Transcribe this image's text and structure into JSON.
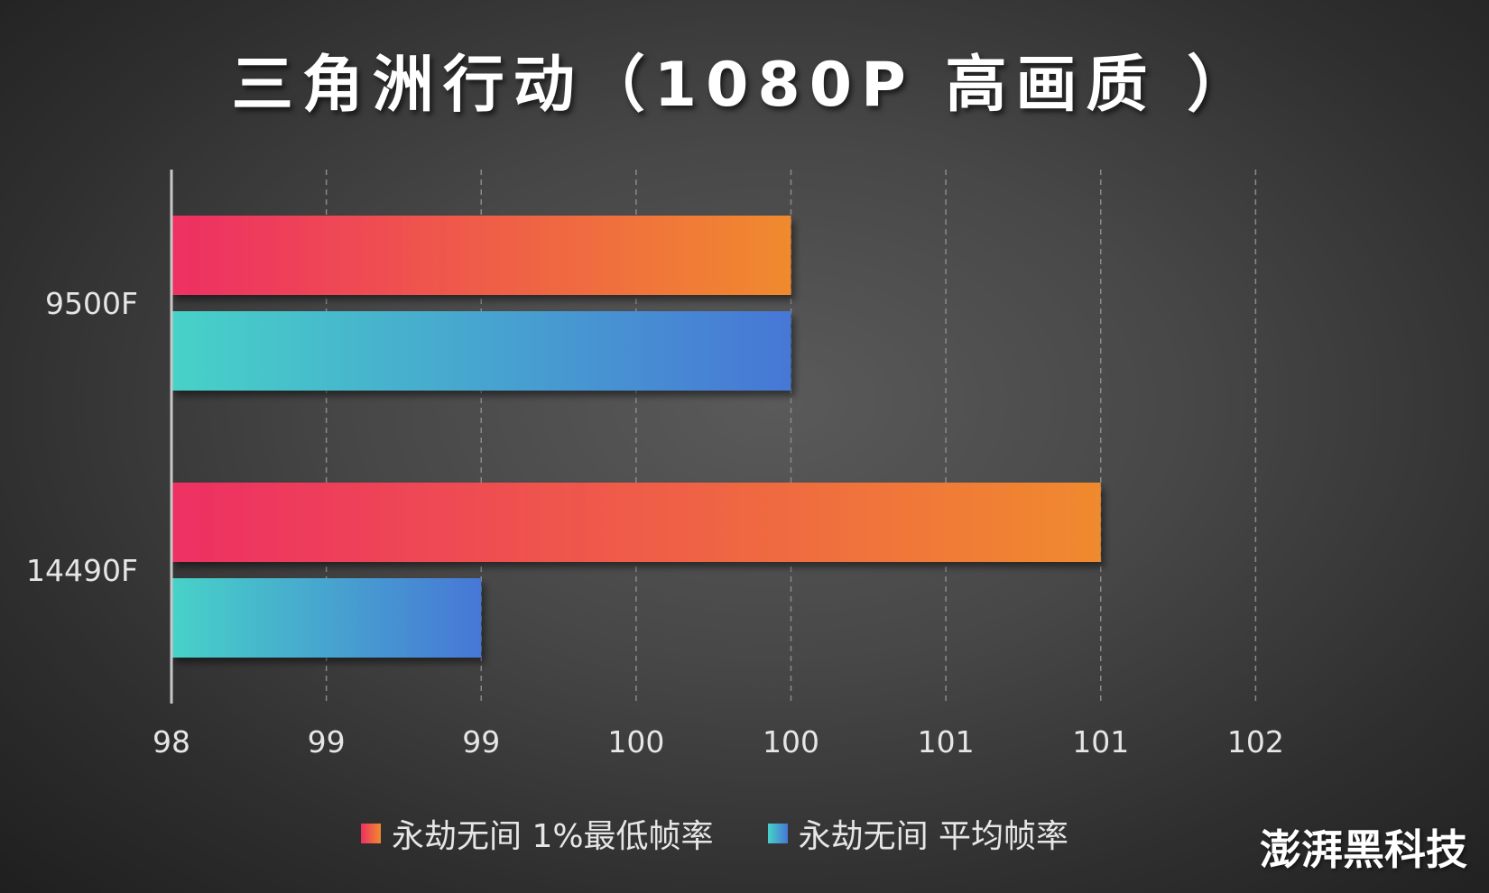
{
  "chart_data": {
    "type": "bar",
    "orientation": "horizontal",
    "title": "三角洲行动（1080P 高画质 ）",
    "categories": [
      "9500F",
      "14490F"
    ],
    "series": [
      {
        "name": "永劫无间 1%最低帧率",
        "values": [
          100,
          101
        ],
        "color_start": "#ee2f63",
        "color_end": "#f08a2e"
      },
      {
        "name": "永劫无间 平均帧率",
        "values": [
          100,
          99
        ],
        "color_start": "#46d2c8",
        "color_end": "#4677d6"
      }
    ],
    "xlim": [
      98,
      102
    ],
    "x_ticks": [
      98,
      98.5,
      99,
      99.5,
      100,
      100.5,
      101,
      101.5
    ],
    "x_tick_labels": [
      "98",
      "99",
      "99",
      "100",
      "100",
      "101",
      "101",
      "102"
    ],
    "grid": true,
    "legend_position": "bottom"
  },
  "watermark": "澎湃黑科技"
}
